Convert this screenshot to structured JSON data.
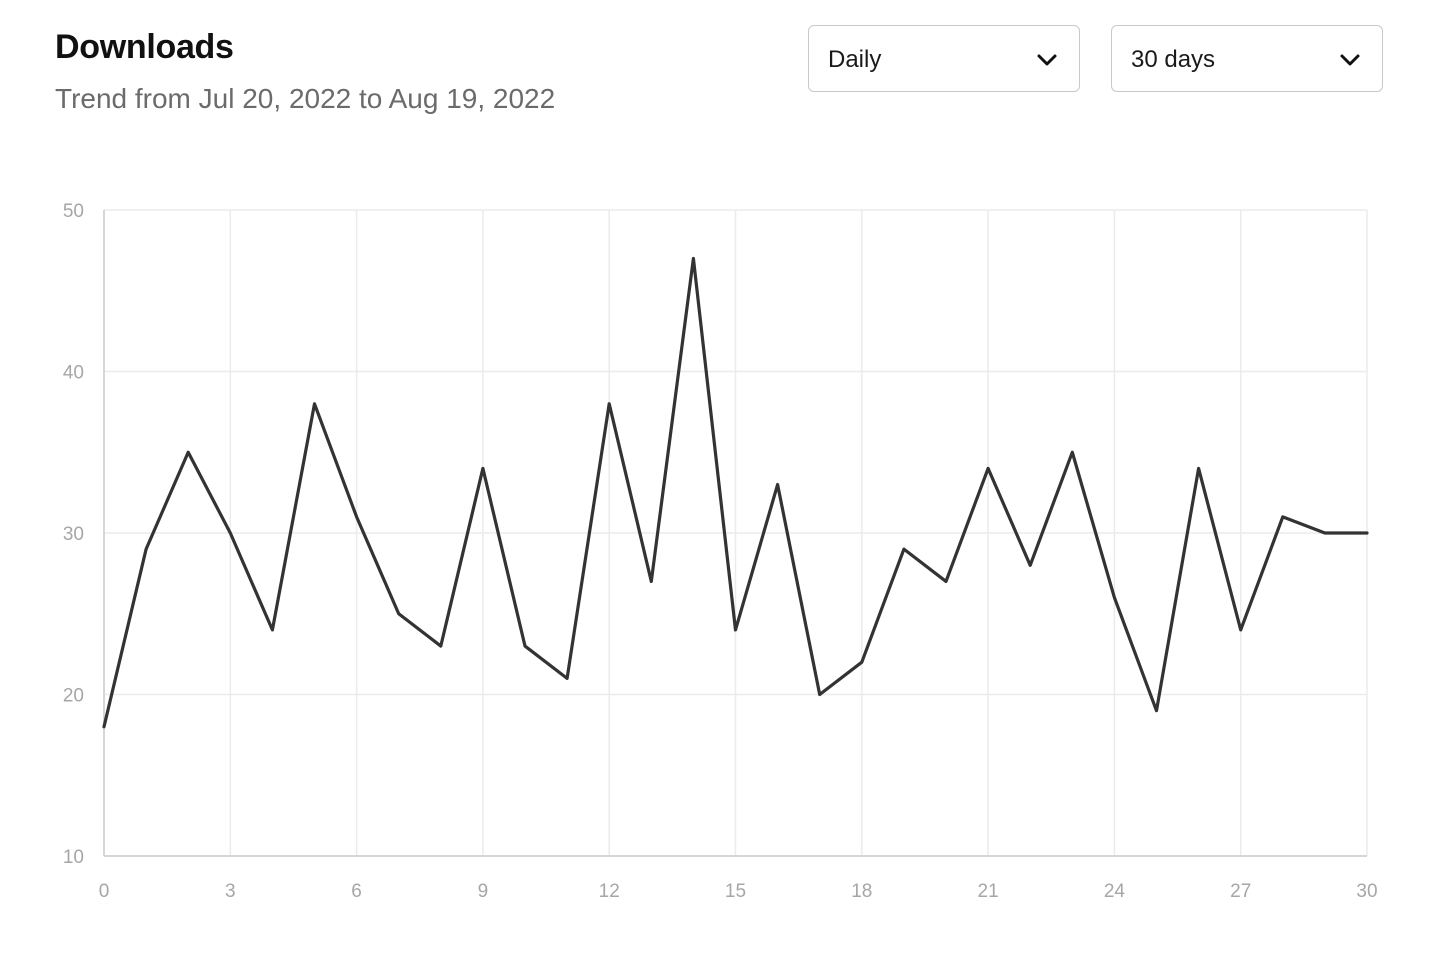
{
  "header": {
    "title": "Downloads",
    "subtitle": "Trend from Jul 20, 2022 to Aug 19, 2022"
  },
  "controls": {
    "interval_select": {
      "value": "Daily",
      "icon": "chevron-down-icon"
    },
    "range_select": {
      "value": "30 days",
      "icon": "chevron-down-icon"
    }
  },
  "colors": {
    "line": "#333333",
    "grid": "#ebebeb",
    "axis": "#cccccc",
    "tick_text": "#a6a6a6"
  },
  "chart_data": {
    "type": "line",
    "title": "Downloads",
    "subtitle": "Trend from Jul 20, 2022 to Aug 19, 2022",
    "xlabel": "",
    "ylabel": "",
    "x": [
      0,
      1,
      2,
      3,
      4,
      5,
      6,
      7,
      8,
      9,
      10,
      11,
      12,
      13,
      14,
      15,
      16,
      17,
      18,
      19,
      20,
      21,
      22,
      23,
      24,
      25,
      26,
      27,
      28,
      29,
      30
    ],
    "series": [
      {
        "values": [
          18,
          29,
          35,
          30,
          24,
          38,
          31,
          25,
          23,
          34,
          23,
          21,
          38,
          27,
          47,
          24,
          33,
          20,
          22,
          29,
          27,
          34,
          28,
          35,
          26,
          19,
          34,
          24,
          31,
          30,
          30
        ]
      }
    ],
    "xlim": [
      0,
      30
    ],
    "ylim": [
      10,
      50
    ],
    "xticks": [
      "0",
      "3",
      "6",
      "9",
      "12",
      "15",
      "18",
      "21",
      "24",
      "27",
      "30"
    ],
    "yticks": [
      "10",
      "20",
      "30",
      "40",
      "50"
    ],
    "grid": true,
    "legend": "none"
  }
}
